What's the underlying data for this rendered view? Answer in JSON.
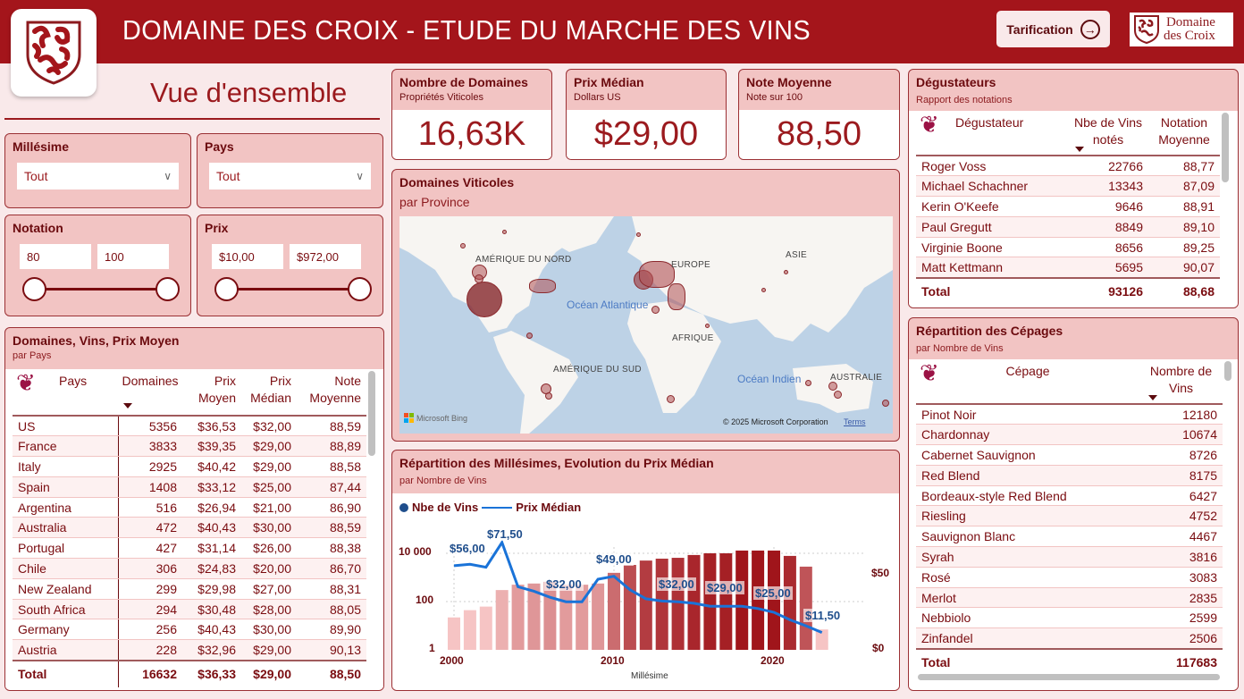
{
  "header": {
    "title": "DOMAINE DES CROIX - ETUDE DU MARCHE DES VINS",
    "tarification_label": "Tarification",
    "brand_line1": "Domaine",
    "brand_line2": "des Croix",
    "accent_color": "#a4151b"
  },
  "page_title": "Vue d'ensemble",
  "filters": {
    "millesime": {
      "label": "Millésime",
      "value": "Tout"
    },
    "pays": {
      "label": "Pays",
      "value": "Tout"
    },
    "notation": {
      "label": "Notation",
      "min": "80",
      "max": "100"
    },
    "prix": {
      "label": "Prix",
      "min": "$10,00",
      "max": "$972,00"
    }
  },
  "kpis": [
    {
      "title": "Nombre de Domaines",
      "subtitle": "Propriétés Viticoles",
      "value": "16,63K"
    },
    {
      "title": "Prix Médian",
      "subtitle": "Dollars US",
      "value": "$29,00"
    },
    {
      "title": "Note Moyenne",
      "subtitle": "Note sur 100",
      "value": "88,50"
    }
  ],
  "country_table": {
    "title": "Domaines, Vins, Prix Moyen",
    "subtitle": "par Pays",
    "headers": [
      "Pays",
      "Domaines",
      "Prix Moyen",
      "Prix Médian",
      "Note Moyenne"
    ],
    "rows": [
      [
        "US",
        "5356",
        "$36,53",
        "$32,00",
        "88,59"
      ],
      [
        "France",
        "3833",
        "$39,35",
        "$29,00",
        "88,89"
      ],
      [
        "Italy",
        "2925",
        "$40,42",
        "$29,00",
        "88,58"
      ],
      [
        "Spain",
        "1408",
        "$33,12",
        "$25,00",
        "87,44"
      ],
      [
        "Argentina",
        "516",
        "$26,94",
        "$21,00",
        "86,90"
      ],
      [
        "Australia",
        "472",
        "$40,43",
        "$30,00",
        "88,59"
      ],
      [
        "Portugal",
        "427",
        "$31,14",
        "$26,00",
        "88,38"
      ],
      [
        "Chile",
        "306",
        "$24,83",
        "$20,00",
        "86,70"
      ],
      [
        "New Zealand",
        "299",
        "$29,98",
        "$27,00",
        "88,31"
      ],
      [
        "South Africa",
        "294",
        "$30,48",
        "$28,00",
        "88,05"
      ],
      [
        "Germany",
        "256",
        "$40,43",
        "$30,00",
        "89,90"
      ],
      [
        "Austria",
        "228",
        "$32,96",
        "$29,00",
        "90,13"
      ]
    ],
    "total": [
      "Total",
      "16632",
      "$36,33",
      "$29,00",
      "88,50"
    ]
  },
  "map": {
    "title": "Domaines Viticoles",
    "subtitle": "par Province",
    "labels": {
      "north_america": "AMÉRIQUE DU NORD",
      "europe": "EUROPE",
      "asia": "ASIE",
      "africa": "AFRIQUE",
      "south_america": "AMÉRIQUE DU SUD",
      "australia": "AUSTRALIE",
      "atlantic": "Océan Atlantique",
      "indian": "Océan Indien"
    },
    "provider": "Microsoft Bing",
    "copyright": "© 2025 Microsoft Corporation",
    "terms": "Terms"
  },
  "tasters": {
    "title": "Dégustateurs",
    "subtitle": "Rapport des notations",
    "headers": [
      "Dégustateur",
      "Nbe de Vins notés",
      "Notation Moyenne"
    ],
    "rows": [
      [
        "Roger Voss",
        "22766",
        "88,77"
      ],
      [
        "Michael Schachner",
        "13343",
        "87,09"
      ],
      [
        "Kerin O'Keefe",
        "9646",
        "88,91"
      ],
      [
        "Paul Gregutt",
        "8849",
        "89,10"
      ],
      [
        "Virginie Boone",
        "8656",
        "89,25"
      ],
      [
        "Matt Kettmann",
        "5695",
        "90,07"
      ]
    ],
    "total": [
      "Total",
      "93126",
      "88,68"
    ]
  },
  "grapes": {
    "title": "Répartition des Cépages",
    "subtitle": "par Nombre de Vins",
    "headers": [
      "Cépage",
      "Nombre de Vins"
    ],
    "rows": [
      [
        "Pinot Noir",
        "12180"
      ],
      [
        "Chardonnay",
        "10674"
      ],
      [
        "Cabernet Sauvignon",
        "8726"
      ],
      [
        "Red Blend",
        "8175"
      ],
      [
        "Bordeaux-style Red Blend",
        "6427"
      ],
      [
        "Riesling",
        "4752"
      ],
      [
        "Sauvignon Blanc",
        "4467"
      ],
      [
        "Syrah",
        "3816"
      ],
      [
        "Rosé",
        "3083"
      ],
      [
        "Merlot",
        "2835"
      ],
      [
        "Nebbiolo",
        "2599"
      ],
      [
        "Zinfandel",
        "2506"
      ]
    ],
    "total": [
      "Total",
      "117683"
    ]
  },
  "vintage_chart": {
    "title": "Répartition des Millésimes, Evolution du Prix Médian",
    "subtitle": "par Nombre de Vins",
    "legend_bars": "Nbe de Vins",
    "legend_line": "Prix Médian",
    "xlabel": "Millésime",
    "y_left_ticks": [
      "10 000",
      "100",
      "1"
    ],
    "y_right_ticks": [
      "$50",
      "$0"
    ],
    "x_ticks": [
      "2000",
      "2010",
      "2020"
    ]
  },
  "chart_data": {
    "type": "bar",
    "title": "Répartition des Millésimes, Evolution du Prix Médian",
    "subtitle": "par Nombre de Vins",
    "xlabel": "Millésime",
    "ylabel": "Nbe de Vins",
    "y_scale": "log",
    "ylim": [
      1,
      20000
    ],
    "y2label": "Prix Médian",
    "y2lim": [
      0,
      75
    ],
    "categories": [
      "2000",
      "2001",
      "2002",
      "2003",
      "2004",
      "2005",
      "2006",
      "2007",
      "2008",
      "2009",
      "2010",
      "2011",
      "2012",
      "2013",
      "2014",
      "2015",
      "2016",
      "2017",
      "2018",
      "2019",
      "2020",
      "2021",
      "2022",
      "2023"
    ],
    "series": [
      {
        "name": "Nbe de Vins",
        "type": "bar",
        "values": [
          22,
          44,
          62,
          300,
          500,
          560,
          660,
          500,
          500,
          560,
          1550,
          3300,
          5000,
          6000,
          6500,
          8500,
          10000,
          10000,
          13000,
          13000,
          13000,
          7800,
          2800,
          7
        ]
      },
      {
        "name": "Prix Médian",
        "type": "line",
        "values": [
          56.0,
          57.0,
          55.0,
          71.5,
          42.0,
          39.0,
          35.0,
          32.0,
          32.0,
          47.0,
          49.0,
          40.0,
          34.0,
          32.5,
          32.0,
          31.0,
          29.0,
          29.0,
          29.0,
          27.5,
          25.0,
          20.0,
          16.0,
          11.5
        ]
      }
    ],
    "data_labels": [
      "$56,00",
      "$71,50",
      "$32,00",
      "$49,00",
      "$32,00",
      "$29,00",
      "$25,00",
      "$11,50"
    ],
    "legend_position": "top-left",
    "grid": true
  }
}
